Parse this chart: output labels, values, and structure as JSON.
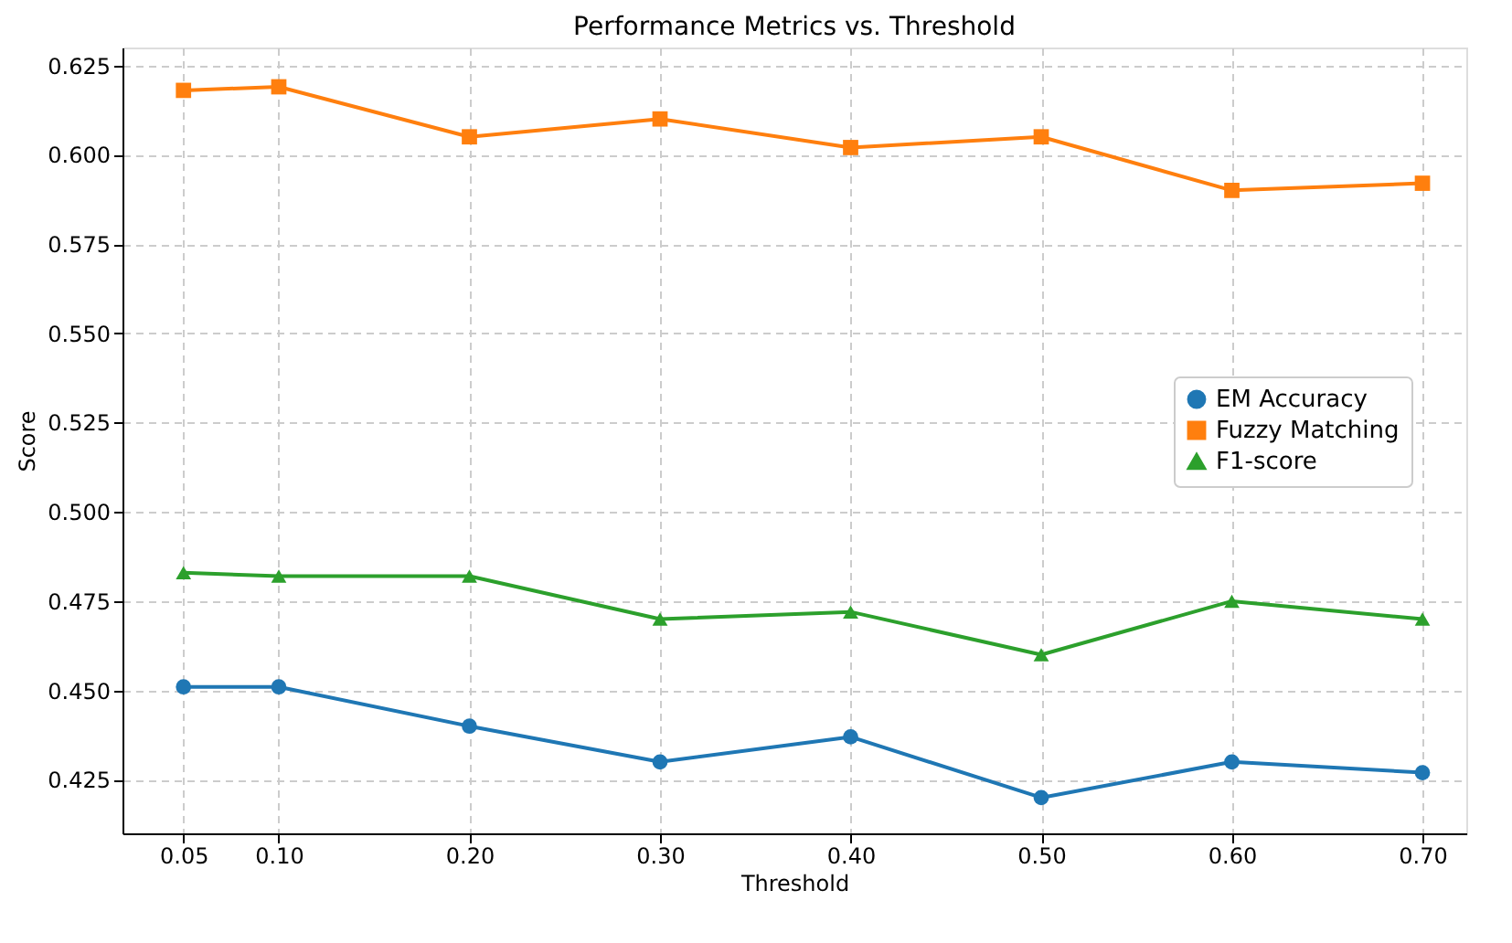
{
  "chart_data": {
    "type": "line",
    "title": "Performance Metrics vs. Threshold",
    "xlabel": "Threshold",
    "ylabel": "Score",
    "x": [
      0.05,
      0.1,
      0.2,
      0.3,
      0.4,
      0.5,
      0.6,
      0.7
    ],
    "series": [
      {
        "name": "EM Accuracy",
        "color": "#1f77b4",
        "marker": "circle",
        "values": [
          0.451,
          0.451,
          0.44,
          0.43,
          0.437,
          0.42,
          0.43,
          0.427
        ]
      },
      {
        "name": "Fuzzy Matching",
        "color": "#ff7f0e",
        "marker": "square",
        "values": [
          0.618,
          0.619,
          0.605,
          0.61,
          0.602,
          0.605,
          0.59,
          0.592
        ]
      },
      {
        "name": "F1-score",
        "color": "#2ca02c",
        "marker": "triangle",
        "values": [
          0.483,
          0.482,
          0.482,
          0.47,
          0.472,
          0.46,
          0.475,
          0.47
        ]
      }
    ],
    "xlim": [
      0.018,
      0.723
    ],
    "ylim": [
      0.41,
      0.63
    ],
    "xticks": [
      {
        "value": 0.05,
        "label": "0.05"
      },
      {
        "value": 0.1,
        "label": "0.10"
      },
      {
        "value": 0.2,
        "label": "0.20"
      },
      {
        "value": 0.3,
        "label": "0.30"
      },
      {
        "value": 0.4,
        "label": "0.40"
      },
      {
        "value": 0.5,
        "label": "0.50"
      },
      {
        "value": 0.6,
        "label": "0.60"
      },
      {
        "value": 0.7,
        "label": "0.70"
      }
    ],
    "yticks": [
      {
        "value": 0.425,
        "label": "0.425"
      },
      {
        "value": 0.45,
        "label": "0.450"
      },
      {
        "value": 0.475,
        "label": "0.475"
      },
      {
        "value": 0.5,
        "label": "0.500"
      },
      {
        "value": 0.525,
        "label": "0.525"
      },
      {
        "value": 0.55,
        "label": "0.550"
      },
      {
        "value": 0.575,
        "label": "0.575"
      },
      {
        "value": 0.6,
        "label": "0.600"
      },
      {
        "value": 0.625,
        "label": "0.625"
      }
    ],
    "grid": true,
    "legend": "right"
  }
}
